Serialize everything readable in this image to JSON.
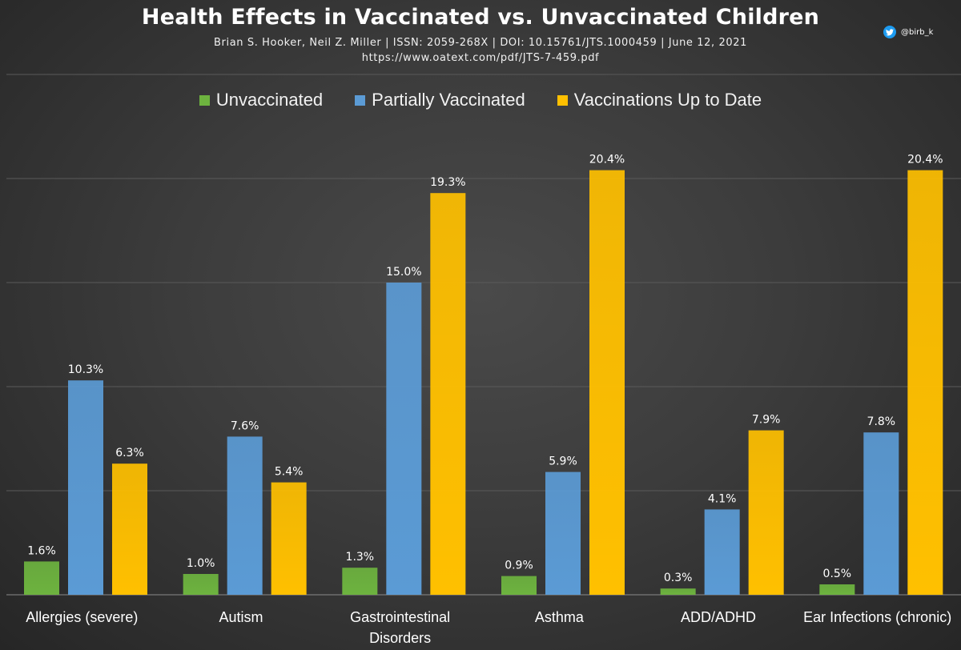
{
  "header": {
    "title": "Health Effects in Vaccinated vs. Unvaccinated Children",
    "subtitle": "Brian S. Hooker, Neil Z. Miller  |  ISSN: 2059-268X  |  DOI: 10.15761/JTS.1000459  |  June 12, 2021",
    "subtitle2": "https://www.oatext.com/pdf/JTS-7-459.pdf"
  },
  "watermark": {
    "icon": "twitter-icon",
    "handle": "@birb_k"
  },
  "chart_data": {
    "type": "bar",
    "title": "Health Effects in Vaccinated vs. Unvaccinated Children",
    "xlabel": "",
    "ylabel": "",
    "ylim": [
      0,
      25
    ],
    "grid": true,
    "legend_position": "top",
    "categories": [
      [
        "Allergies (severe)"
      ],
      [
        "Autism"
      ],
      [
        "Gastrointestinal",
        "Disorders"
      ],
      [
        "Asthma"
      ],
      [
        "ADD/ADHD"
      ],
      [
        "Ear Infections (chronic)"
      ]
    ],
    "series": [
      {
        "name": "Unvaccinated",
        "color": "#6db33f",
        "values": [
          1.6,
          1.0,
          1.3,
          0.9,
          0.3,
          0.5
        ],
        "labels": [
          "1.6%",
          "1.0%",
          "1.3%",
          "0.9%",
          "0.3%",
          "0.5%"
        ]
      },
      {
        "name": "Partially Vaccinated",
        "color": "#5b9bd5",
        "values": [
          10.3,
          7.6,
          15.0,
          5.9,
          4.1,
          7.8
        ],
        "labels": [
          "10.3%",
          "7.6%",
          "15.0%",
          "5.9%",
          "4.1%",
          "7.8%"
        ]
      },
      {
        "name": "Vaccinations Up to Date",
        "color": "#ffc000",
        "values": [
          6.3,
          5.4,
          19.3,
          20.4,
          7.9,
          20.4
        ],
        "labels": [
          "6.3%",
          "5.4%",
          "19.3%",
          "20.4%",
          "7.9%",
          "20.4%"
        ]
      }
    ]
  }
}
